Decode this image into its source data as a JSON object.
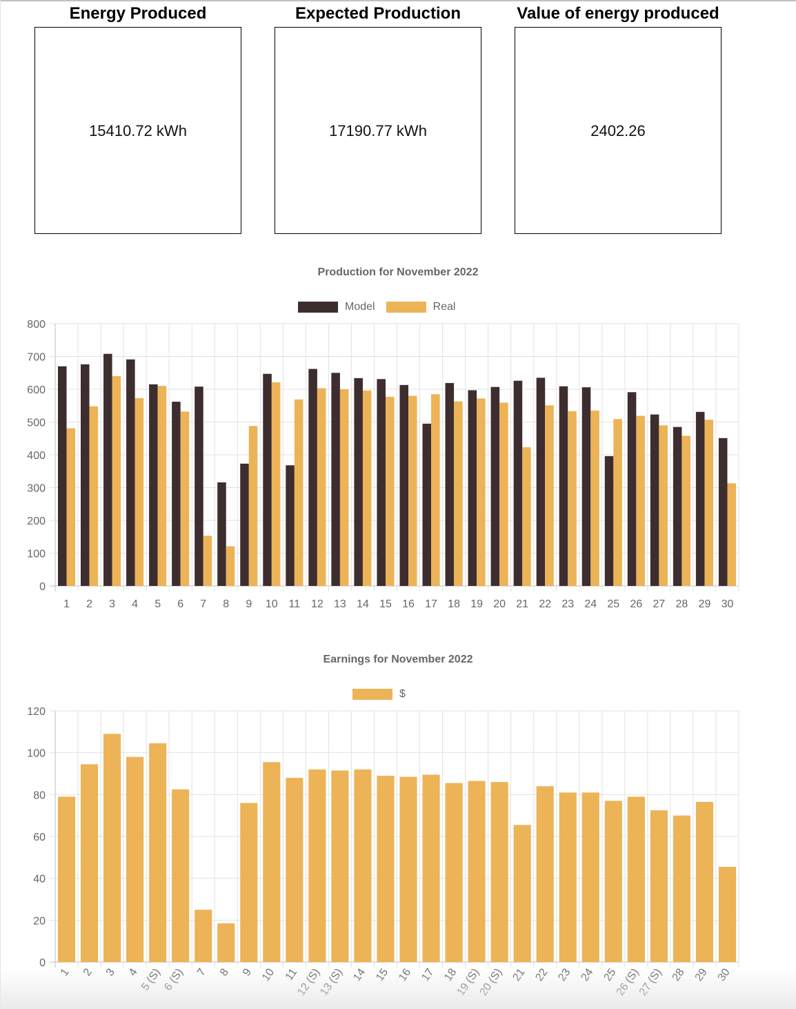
{
  "cards": [
    {
      "title": "Energy Produced",
      "value": "15410.72 kWh"
    },
    {
      "title": "Expected Production",
      "value": "17190.77 kWh"
    },
    {
      "title": "Value of energy produced",
      "value": "2402.26"
    }
  ],
  "colors": {
    "model": "#3d2d2f",
    "real": "#ecb357",
    "grid": "#e2e2e2",
    "text": "#666666"
  },
  "chart_data": [
    {
      "type": "bar",
      "title": "Production for November 2022",
      "categories": [
        "1",
        "2",
        "3",
        "4",
        "5",
        "6",
        "7",
        "8",
        "9",
        "10",
        "11",
        "12",
        "13",
        "14",
        "15",
        "16",
        "17",
        "18",
        "19",
        "20",
        "21",
        "22",
        "23",
        "24",
        "25",
        "26",
        "27",
        "28",
        "29",
        "30"
      ],
      "series": [
        {
          "name": "Model",
          "values": [
            670,
            676,
            708,
            691,
            615,
            562,
            608,
            316,
            373,
            647,
            368,
            662,
            650,
            634,
            631,
            613,
            495,
            619,
            597,
            607,
            626,
            635,
            609,
            606,
            396,
            591,
            523,
            485,
            531,
            451
          ]
        },
        {
          "name": "Real",
          "values": [
            481,
            548,
            640,
            573,
            610,
            532,
            153,
            121,
            488,
            621,
            569,
            603,
            600,
            596,
            577,
            580,
            585,
            563,
            572,
            559,
            423,
            551,
            533,
            535,
            509,
            519,
            490,
            458,
            507,
            313
          ]
        }
      ],
      "ylim": [
        0,
        800
      ],
      "yticks": [
        0,
        100,
        200,
        300,
        400,
        500,
        600,
        700,
        800
      ],
      "legend": "top-center",
      "grid": true
    },
    {
      "type": "bar",
      "title": "Earnings for November 2022",
      "categories": [
        "1",
        "2",
        "3",
        "4",
        "5 (S)",
        "6 (S)",
        "7",
        "8",
        "9",
        "10",
        "11",
        "12 (S)",
        "13 (S)",
        "14",
        "15",
        "16",
        "17",
        "18",
        "19 (S)",
        "20 (S)",
        "21",
        "22",
        "23",
        "24",
        "25",
        "26 (S)",
        "27 (S)",
        "28",
        "29",
        "30"
      ],
      "series": [
        {
          "name": "$",
          "values": [
            79,
            94.5,
            109,
            98,
            104.5,
            82.5,
            25,
            18.5,
            76,
            95.5,
            88,
            92,
            91.5,
            92,
            89,
            88.5,
            89.5,
            85.5,
            86.5,
            86,
            65.5,
            84,
            81,
            81,
            77,
            79,
            72.5,
            70,
            76.5,
            45.5
          ]
        }
      ],
      "ylim": [
        0,
        120
      ],
      "yticks": [
        0,
        20,
        40,
        60,
        80,
        100,
        120
      ],
      "legend": "top-center",
      "grid": true
    }
  ]
}
